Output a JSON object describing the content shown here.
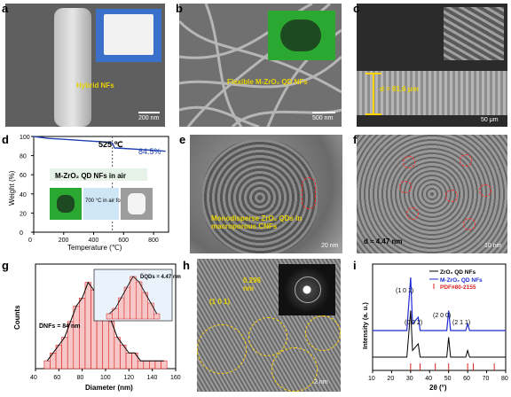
{
  "panels": {
    "a": {
      "label": "a",
      "caption": "Hybrid NFs",
      "scale": "200 nm"
    },
    "b": {
      "label": "b",
      "caption": "Flexible M-ZrO₂ QD NFs",
      "scale": "500 nm"
    },
    "c": {
      "label": "c",
      "thickness": "d = 81.6 μm",
      "scale": "50 μm"
    },
    "d": {
      "label": "d",
      "legend": "M-ZrO₂ QD NFs in air",
      "temp_marker": "525 ℃",
      "retention": "84.5%",
      "arrow_text": "700 °C in air for 2 h",
      "xlabel": "Temperature (℃)",
      "ylabel": "Weight (%)"
    },
    "e": {
      "label": "e",
      "caption": "Monodisperse ZrO₂ QDs in macroporous CNFs",
      "scale": "20 nm"
    },
    "f": {
      "label": "f",
      "caption": "d ≈ 4.47 nm",
      "scale": "10 nm"
    },
    "g": {
      "label": "g",
      "nfs_label": "D̅NFs = 84 nm",
      "qds_label": "D̅QDs = 4.47 nm",
      "xlabel": "Diameter (nm)",
      "ylabel": "Counts"
    },
    "h": {
      "label": "h",
      "spacing": "0.296 nm",
      "plane": "(1 0 1)",
      "scale": "2 nm"
    },
    "i": {
      "label": "i",
      "xlabel": "2θ (°)",
      "ylabel": "Intensity (a. u.)",
      "peaks": [
        "(1 0 1)",
        "(0 0 2)",
        "(2 0 0)",
        "(2 1 1)"
      ]
    }
  },
  "chart_data": [
    {
      "type": "line",
      "panel": "d",
      "xlabel": "Temperature (℃)",
      "ylabel": "Weight (%)",
      "xlim": [
        0,
        900
      ],
      "ylim": [
        0,
        100
      ],
      "xticks": [
        0,
        200,
        400,
        600,
        800
      ],
      "yticks": [
        0,
        20,
        40,
        60,
        80,
        100
      ],
      "annotations": [
        "525 ℃",
        "84.5%"
      ],
      "series": [
        {
          "x": [
            0,
            100,
            200,
            300,
            400,
            500,
            525,
            540,
            600,
            700,
            800,
            850,
            880
          ],
          "values": [
            100,
            98,
            97,
            96,
            95,
            94,
            93,
            88,
            87.5,
            86.5,
            85.5,
            85,
            84.5
          ]
        }
      ]
    },
    {
      "type": "bar",
      "panel": "g",
      "xlabel": "Diameter (nm)",
      "ylabel": "Counts",
      "xlim": [
        40,
        160
      ],
      "xticks": [
        40,
        60,
        80,
        100,
        120,
        140,
        160
      ],
      "categories": [
        50,
        55,
        60,
        65,
        70,
        75,
        80,
        85,
        90,
        95,
        100,
        105,
        110,
        115,
        120,
        125,
        130,
        135,
        140,
        145,
        150
      ],
      "values": [
        1,
        2,
        3,
        4,
        6,
        8,
        9,
        11,
        10,
        9,
        8,
        6,
        4,
        3,
        2,
        2,
        1,
        1,
        1,
        1,
        1
      ],
      "inset": {
        "xlim": [
          1,
          7
        ],
        "xticks": [
          1,
          2,
          3,
          4,
          5,
          6,
          7
        ],
        "categories": [
          2,
          2.5,
          3,
          3.5,
          4,
          4.5,
          5,
          5.5,
          6
        ],
        "values": [
          1,
          2,
          4,
          6,
          8,
          7,
          5,
          3,
          1
        ]
      }
    },
    {
      "type": "line",
      "panel": "i",
      "xlabel": "2θ (°)",
      "ylabel": "Intensity (a. u.)",
      "xlim": [
        10,
        80
      ],
      "xticks": [
        10,
        20,
        30,
        40,
        50,
        60,
        70,
        80
      ],
      "legend": [
        "ZrO₂ QD NFs",
        "M-ZrO₂ QD NFs",
        "PDF#80-2155"
      ],
      "series": [
        {
          "name": "ZrO₂ QD NFs",
          "color": "#000000",
          "x": [
            10,
            20,
            28,
            30,
            31,
            34,
            35,
            40,
            49,
            50,
            51,
            59,
            60,
            61,
            70,
            80
          ],
          "values": [
            2,
            2,
            2,
            9,
            3,
            4,
            2,
            2,
            2,
            5,
            2,
            2,
            3,
            2,
            2,
            2
          ]
        },
        {
          "name": "M-ZrO₂ QD NFs",
          "color": "#1f2bd6",
          "x": [
            10,
            20,
            28,
            30,
            31,
            34,
            35,
            40,
            49,
            50,
            51,
            59,
            60,
            61,
            70,
            80
          ],
          "values": [
            6,
            6,
            6,
            14,
            7,
            8,
            6,
            6,
            6,
            9,
            6,
            6,
            7,
            6,
            6,
            6
          ]
        }
      ],
      "reference_lines": {
        "name": "PDF#80-2155",
        "color": "#e02020",
        "x": [
          30,
          35,
          43,
          50,
          60,
          63,
          74
        ]
      }
    }
  ]
}
